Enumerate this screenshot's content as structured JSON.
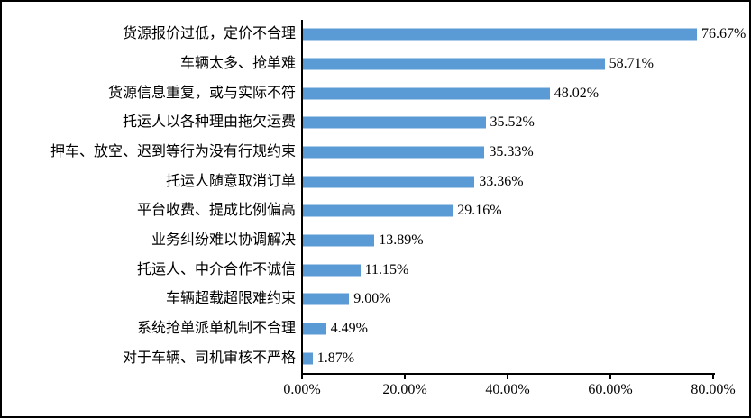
{
  "chart_data": {
    "type": "bar",
    "orientation": "horizontal",
    "title": "",
    "xlabel": "",
    "ylabel": "",
    "xlim": [
      0,
      80
    ],
    "grid": false,
    "legend_position": "none",
    "bar_color": "#5B9BD5",
    "axis_color": "#000000",
    "categories": [
      "货源报价过低，定价不合理",
      "车辆太多、抢单难",
      "货源信息重复，或与实际不符",
      "托运人以各种理由拖欠运费",
      "押车、放空、迟到等行为没有行规约束",
      "托运人随意取消订单",
      "平台收费、提成比例偏高",
      "业务纠纷难以协调解决",
      "托运人、中介合作不诚信",
      "车辆超载超限难约束",
      "系统抢单派单机制不合理",
      "对于车辆、司机审核不严格"
    ],
    "values": [
      76.67,
      58.71,
      48.02,
      35.52,
      35.33,
      33.36,
      29.16,
      13.89,
      11.15,
      9.0,
      4.49,
      1.87
    ],
    "value_labels": [
      "76.67%",
      "58.71%",
      "48.02%",
      "35.52%",
      "35.33%",
      "33.36%",
      "29.16%",
      "13.89%",
      "11.15%",
      "9.00%",
      "4.49%",
      "1.87%"
    ],
    "x_ticks": [
      "0.00%",
      "20.00%",
      "40.00%",
      "60.00%",
      "80.00%"
    ]
  }
}
